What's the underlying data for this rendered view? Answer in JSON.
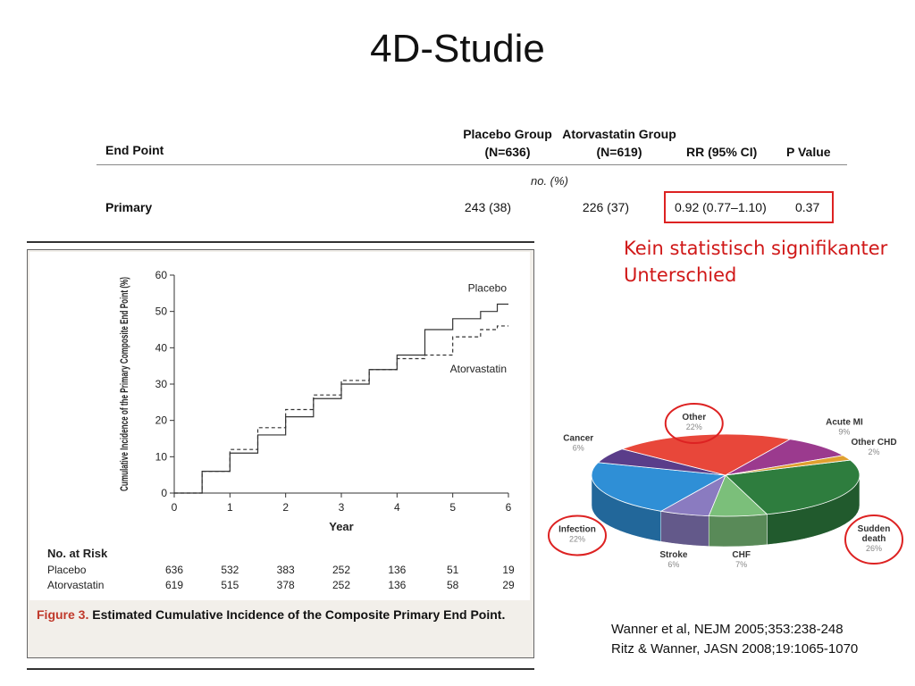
{
  "slide": {
    "title": "4D-Studie"
  },
  "results_table": {
    "headers": {
      "end_point": "End Point",
      "placebo_line1": "Placebo Group",
      "placebo_line2": "(N=636)",
      "atorva_line1": "Atorvastatin Group",
      "atorva_line2": "(N=619)",
      "rr": "RR (95% CI)",
      "p": "P Value"
    },
    "units": "no. (%)",
    "row": {
      "label": "Primary",
      "placebo": "243 (38)",
      "atorvastatin": "226 (37)",
      "rr": "0.92 (0.77–1.10)",
      "p": "0.37"
    },
    "highlight_color": "#dd2222"
  },
  "callout": {
    "line1": "Kein statistisch signifikanter",
    "line2": "Unterschied",
    "color": "#d01818"
  },
  "figure": {
    "caption_label": "Figure 3.",
    "caption_text": "Estimated Cumulative Incidence of the Composite Primary End Point."
  },
  "chart_data": [
    {
      "type": "line",
      "xlabel": "Year",
      "ylabel": "Cumulative Incidence of the Primary Composite End Point (%)",
      "xlim": [
        0,
        6
      ],
      "ylim": [
        0,
        60
      ],
      "x_ticks": [
        "0",
        "1",
        "2",
        "3",
        "4",
        "5",
        "6"
      ],
      "y_ticks": [
        "0",
        "10",
        "20",
        "30",
        "40",
        "50",
        "60"
      ],
      "grid": false,
      "series": [
        {
          "name": "Placebo",
          "style": "solid",
          "x": [
            0,
            0.5,
            1,
            1.5,
            2,
            2.5,
            3,
            3.5,
            4,
            4.5,
            5,
            5.5,
            5.8,
            6
          ],
          "y": [
            0,
            6,
            11,
            16,
            21,
            26,
            30,
            34,
            38,
            45,
            48,
            50,
            52,
            52
          ]
        },
        {
          "name": "Atorvastatin",
          "style": "dashed",
          "x": [
            0,
            0.5,
            1,
            1.5,
            2,
            2.5,
            3,
            3.5,
            4,
            4.5,
            5,
            5.5,
            5.8,
            6
          ],
          "y": [
            0,
            6,
            12,
            18,
            23,
            27,
            31,
            34,
            37,
            38,
            43,
            45,
            46,
            46
          ]
        }
      ],
      "risk_table": {
        "title": "No. at Risk",
        "rows": [
          {
            "label": "Placebo",
            "values": [
              "636",
              "532",
              "383",
              "252",
              "136",
              "51",
              "19"
            ]
          },
          {
            "label": "Atorvastatin",
            "values": [
              "619",
              "515",
              "378",
              "252",
              "136",
              "58",
              "29"
            ]
          }
        ]
      }
    },
    {
      "type": "pie",
      "slices": [
        {
          "label": "Sudden death",
          "pct_label": "26%",
          "value": 26,
          "color": "#2e7d3e",
          "circled": true
        },
        {
          "label": "CHF",
          "pct_label": "7%",
          "value": 7,
          "color": "#7bbf7a",
          "circled": false
        },
        {
          "label": "Stroke",
          "pct_label": "6%",
          "value": 6,
          "color": "#8a7bc0",
          "circled": false
        },
        {
          "label": "Infection",
          "pct_label": "22%",
          "value": 22,
          "color": "#2f8fd6",
          "circled": true
        },
        {
          "label": "Cancer",
          "pct_label": "6%",
          "value": 6,
          "color": "#5a3d8a",
          "circled": false
        },
        {
          "label": "Other",
          "pct_label": "22%",
          "value": 22,
          "color": "#e8473a",
          "circled": true
        },
        {
          "label": "Acute MI",
          "pct_label": "9%",
          "value": 9,
          "color": "#9b3a8e",
          "circled": false
        },
        {
          "label": "Other CHD",
          "pct_label": "2%",
          "value": 2,
          "color": "#e0a030",
          "circled": false
        }
      ]
    }
  ],
  "references": {
    "line1": "Wanner et al, NEJM 2005;353:238-248",
    "line2": "Ritz & Wanner, JASN 2008;19:1065-1070"
  }
}
